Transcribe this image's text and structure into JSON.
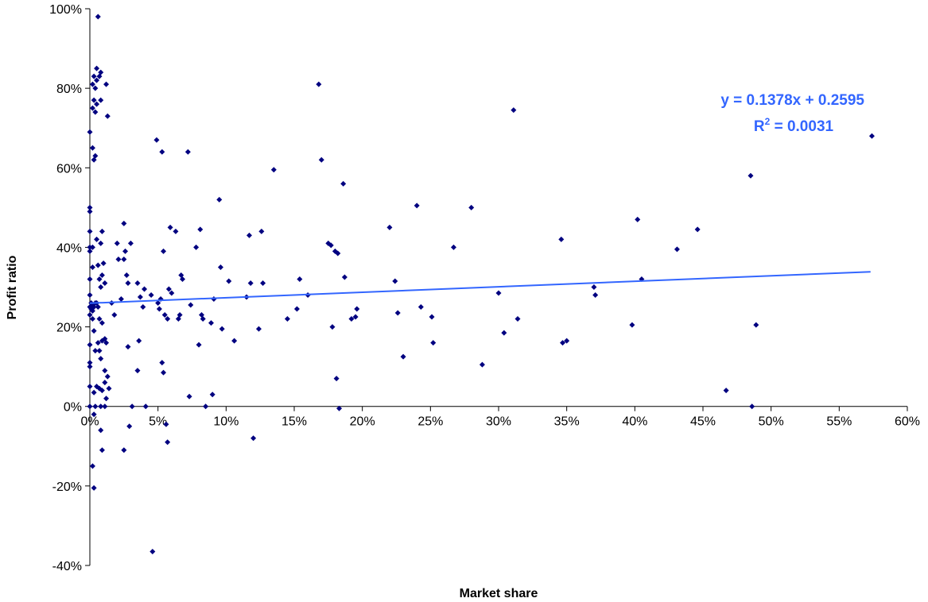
{
  "chart_data": {
    "type": "scatter",
    "title": "",
    "xlabel": "Market share",
    "ylabel": "Profit ratio",
    "xlim": [
      0,
      0.6
    ],
    "ylim": [
      -0.4,
      1.0
    ],
    "x_ticks": [
      "0%",
      "5%",
      "10%",
      "15%",
      "20%",
      "25%",
      "30%",
      "35%",
      "40%",
      "45%",
      "50%",
      "55%",
      "60%"
    ],
    "y_ticks": [
      "-40%",
      "-20%",
      "0%",
      "20%",
      "40%",
      "60%",
      "80%",
      "100%"
    ],
    "grid": false,
    "legend": "none",
    "marker_color": "#000080",
    "trendline": {
      "slope": 0.1378,
      "intercept": 0.2595,
      "x_range": [
        0,
        0.573
      ],
      "color": "#3366ff",
      "equation": "y = 0.1378x + 0.2595",
      "r2_prefix": "R",
      "r2_sup": "2",
      "r2_value": " = 0.0031"
    },
    "series": [
      {
        "points": [
          [
            0.006,
            0.98
          ],
          [
            0.005,
            0.85
          ],
          [
            0.008,
            0.84
          ],
          [
            0.003,
            0.83
          ],
          [
            0.005,
            0.82
          ],
          [
            0.007,
            0.83
          ],
          [
            0.004,
            0.8
          ],
          [
            0.002,
            0.81
          ],
          [
            0.012,
            0.81
          ],
          [
            0.003,
            0.77
          ],
          [
            0.005,
            0.76
          ],
          [
            0.008,
            0.77
          ],
          [
            0.002,
            0.75
          ],
          [
            0.004,
            0.74
          ],
          [
            0.013,
            0.73
          ],
          [
            0.0,
            0.69
          ],
          [
            0.002,
            0.65
          ],
          [
            0.004,
            0.63
          ],
          [
            0.003,
            0.62
          ],
          [
            0.0,
            0.5
          ],
          [
            0.0,
            0.49
          ],
          [
            0.0,
            0.44
          ],
          [
            0.009,
            0.44
          ],
          [
            0.005,
            0.42
          ],
          [
            0.0,
            0.4
          ],
          [
            0.002,
            0.4
          ],
          [
            0.008,
            0.41
          ],
          [
            0.0,
            0.39
          ],
          [
            0.01,
            0.36
          ],
          [
            0.006,
            0.355
          ],
          [
            0.002,
            0.35
          ],
          [
            0.0,
            0.32
          ],
          [
            0.009,
            0.33
          ],
          [
            0.007,
            0.32
          ],
          [
            0.011,
            0.31
          ],
          [
            0.008,
            0.3
          ],
          [
            0.0,
            0.28
          ],
          [
            0.001,
            0.26
          ],
          [
            0.002,
            0.255
          ],
          [
            0.003,
            0.25
          ],
          [
            0.004,
            0.26
          ],
          [
            0.005,
            0.26
          ],
          [
            0.0,
            0.25
          ],
          [
            0.001,
            0.245
          ],
          [
            0.002,
            0.24
          ],
          [
            0.006,
            0.25
          ],
          [
            0.0,
            0.23
          ],
          [
            0.002,
            0.22
          ],
          [
            0.007,
            0.22
          ],
          [
            0.009,
            0.21
          ],
          [
            0.003,
            0.19
          ],
          [
            0.006,
            0.16
          ],
          [
            0.0,
            0.155
          ],
          [
            0.011,
            0.17
          ],
          [
            0.009,
            0.165
          ],
          [
            0.012,
            0.16
          ],
          [
            0.004,
            0.14
          ],
          [
            0.007,
            0.14
          ],
          [
            0.008,
            0.12
          ],
          [
            0.0,
            0.11
          ],
          [
            0.0,
            0.1
          ],
          [
            0.011,
            0.09
          ],
          [
            0.013,
            0.075
          ],
          [
            0.0,
            0.05
          ],
          [
            0.005,
            0.05
          ],
          [
            0.007,
            0.045
          ],
          [
            0.009,
            0.04
          ],
          [
            0.011,
            0.06
          ],
          [
            0.014,
            0.045
          ],
          [
            0.003,
            0.035
          ],
          [
            0.012,
            0.02
          ],
          [
            0.0,
            0.0
          ],
          [
            0.004,
            0.0
          ],
          [
            0.008,
            0.0
          ],
          [
            0.011,
            0.0
          ],
          [
            0.003,
            -0.02
          ],
          [
            0.008,
            -0.06
          ],
          [
            0.009,
            -0.11
          ],
          [
            0.002,
            -0.15
          ],
          [
            0.003,
            -0.205
          ],
          [
            0.016,
            0.26
          ],
          [
            0.018,
            0.23
          ],
          [
            0.02,
            0.41
          ],
          [
            0.021,
            0.37
          ],
          [
            0.023,
            0.27
          ],
          [
            0.025,
            0.46
          ],
          [
            0.026,
            0.39
          ],
          [
            0.025,
            0.37
          ],
          [
            0.027,
            0.33
          ],
          [
            0.028,
            0.31
          ],
          [
            0.03,
            0.41
          ],
          [
            0.028,
            0.15
          ],
          [
            0.031,
            0.0
          ],
          [
            0.029,
            -0.05
          ],
          [
            0.025,
            -0.11
          ],
          [
            0.035,
            0.31
          ],
          [
            0.037,
            0.275
          ],
          [
            0.036,
            0.165
          ],
          [
            0.035,
            0.09
          ],
          [
            0.04,
            0.295
          ],
          [
            0.039,
            0.25
          ],
          [
            0.041,
            0.0
          ],
          [
            0.045,
            0.28
          ],
          [
            0.046,
            -0.365
          ],
          [
            0.049,
            0.67
          ],
          [
            0.05,
            0.26
          ],
          [
            0.051,
            0.245
          ],
          [
            0.052,
            0.27
          ],
          [
            0.053,
            0.64
          ],
          [
            0.054,
            0.39
          ],
          [
            0.055,
            0.23
          ],
          [
            0.053,
            0.11
          ],
          [
            0.054,
            0.085
          ],
          [
            0.057,
            0.22
          ],
          [
            0.056,
            -0.045
          ],
          [
            0.057,
            -0.09
          ],
          [
            0.059,
            0.45
          ],
          [
            0.058,
            0.295
          ],
          [
            0.06,
            0.285
          ],
          [
            0.065,
            0.22
          ],
          [
            0.063,
            0.44
          ],
          [
            0.067,
            0.33
          ],
          [
            0.068,
            0.32
          ],
          [
            0.066,
            0.23
          ],
          [
            0.072,
            0.64
          ],
          [
            0.074,
            0.255
          ],
          [
            0.073,
            0.025
          ],
          [
            0.078,
            0.4
          ],
          [
            0.08,
            0.155
          ],
          [
            0.081,
            0.445
          ],
          [
            0.082,
            0.23
          ],
          [
            0.083,
            0.22
          ],
          [
            0.085,
            0.0
          ],
          [
            0.089,
            0.21
          ],
          [
            0.09,
            0.03
          ],
          [
            0.091,
            0.27
          ],
          [
            0.095,
            0.52
          ],
          [
            0.096,
            0.35
          ],
          [
            0.097,
            0.195
          ],
          [
            0.102,
            0.315
          ],
          [
            0.106,
            0.165
          ],
          [
            0.115,
            0.275
          ],
          [
            0.117,
            0.43
          ],
          [
            0.118,
            0.31
          ],
          [
            0.12,
            -0.08
          ],
          [
            0.124,
            0.195
          ],
          [
            0.126,
            0.44
          ],
          [
            0.127,
            0.31
          ],
          [
            0.135,
            0.595
          ],
          [
            0.145,
            0.22
          ],
          [
            0.152,
            0.245
          ],
          [
            0.154,
            0.32
          ],
          [
            0.16,
            0.28
          ],
          [
            0.168,
            0.81
          ],
          [
            0.17,
            0.62
          ],
          [
            0.175,
            0.41
          ],
          [
            0.177,
            0.405
          ],
          [
            0.178,
            0.2
          ],
          [
            0.18,
            0.39
          ],
          [
            0.181,
            0.07
          ],
          [
            0.182,
            0.385
          ],
          [
            0.183,
            -0.005
          ],
          [
            0.186,
            0.56
          ],
          [
            0.187,
            0.325
          ],
          [
            0.192,
            0.22
          ],
          [
            0.195,
            0.225
          ],
          [
            0.196,
            0.245
          ],
          [
            0.22,
            0.45
          ],
          [
            0.224,
            0.315
          ],
          [
            0.226,
            0.235
          ],
          [
            0.23,
            0.125
          ],
          [
            0.24,
            0.505
          ],
          [
            0.243,
            0.25
          ],
          [
            0.251,
            0.225
          ],
          [
            0.252,
            0.16
          ],
          [
            0.267,
            0.4
          ],
          [
            0.28,
            0.5
          ],
          [
            0.288,
            0.105
          ],
          [
            0.3,
            0.285
          ],
          [
            0.304,
            0.185
          ],
          [
            0.311,
            0.745
          ],
          [
            0.314,
            0.22
          ],
          [
            0.346,
            0.42
          ],
          [
            0.347,
            0.16
          ],
          [
            0.35,
            0.165
          ],
          [
            0.37,
            0.3
          ],
          [
            0.371,
            0.28
          ],
          [
            0.398,
            0.205
          ],
          [
            0.402,
            0.47
          ],
          [
            0.405,
            0.32
          ],
          [
            0.431,
            0.395
          ],
          [
            0.446,
            0.445
          ],
          [
            0.467,
            0.04
          ],
          [
            0.485,
            0.58
          ],
          [
            0.486,
            0.0
          ],
          [
            0.489,
            0.205
          ],
          [
            0.574,
            0.68
          ]
        ]
      }
    ]
  }
}
